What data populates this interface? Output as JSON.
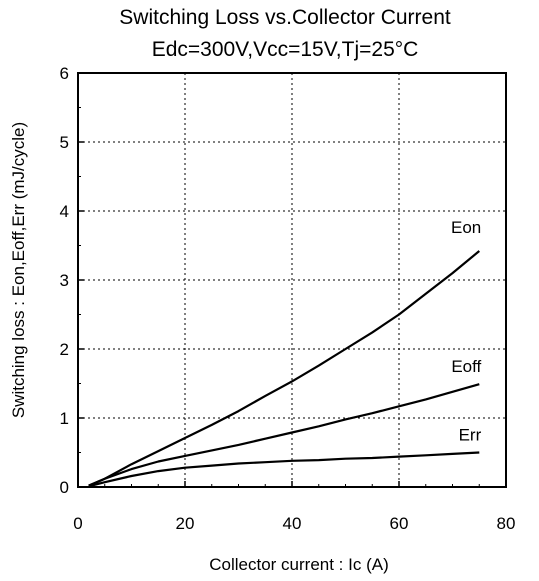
{
  "chart_data": {
    "type": "line",
    "title": "Switching Loss vs.Collector Current",
    "subtitle": "Edc=300V,Vcc=15V,Tj=25°C",
    "xlabel": "Collector current : Ic  (A)",
    "ylabel": "Switching loss : Eon,Eoff,Err  (mJ/cycle)",
    "xlim": [
      0,
      80
    ],
    "ylim": [
      0,
      6
    ],
    "xticks": [
      "0",
      "20",
      "40",
      "60",
      "80"
    ],
    "yticks": [
      "0",
      "1",
      "2",
      "3",
      "4",
      "5",
      "6"
    ],
    "xtick_values": [
      0,
      20,
      40,
      60,
      80
    ],
    "ytick_values": [
      0,
      1,
      2,
      3,
      4,
      5,
      6
    ],
    "grid": true,
    "grid_style": "dotted",
    "series": [
      {
        "name": "Eon",
        "x": [
          2,
          5,
          10,
          15,
          20,
          25,
          30,
          35,
          40,
          45,
          50,
          55,
          60,
          65,
          70,
          75
        ],
        "y": [
          0.02,
          0.12,
          0.33,
          0.52,
          0.71,
          0.9,
          1.1,
          1.32,
          1.53,
          1.76,
          2.0,
          2.24,
          2.5,
          2.8,
          3.1,
          3.42
        ]
      },
      {
        "name": "Eoff",
        "x": [
          2,
          5,
          10,
          15,
          20,
          25,
          30,
          35,
          40,
          45,
          50,
          55,
          60,
          65,
          70,
          75
        ],
        "y": [
          0.02,
          0.12,
          0.26,
          0.37,
          0.45,
          0.53,
          0.61,
          0.7,
          0.79,
          0.88,
          0.98,
          1.07,
          1.17,
          1.27,
          1.38,
          1.49
        ]
      },
      {
        "name": "Err",
        "x": [
          2,
          5,
          10,
          15,
          20,
          25,
          30,
          35,
          40,
          45,
          50,
          55,
          60,
          65,
          70,
          75
        ],
        "y": [
          0.01,
          0.07,
          0.16,
          0.23,
          0.28,
          0.31,
          0.34,
          0.36,
          0.38,
          0.39,
          0.41,
          0.42,
          0.44,
          0.46,
          0.48,
          0.5
        ]
      }
    ]
  }
}
